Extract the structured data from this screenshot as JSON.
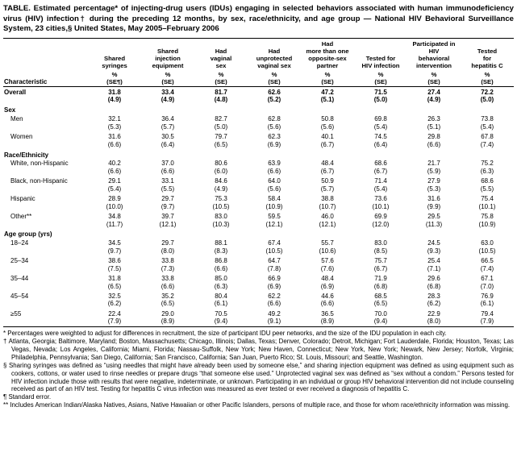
{
  "title": "TABLE. Estimated percentage* of injecting-drug users (IDUs) engaging in selected behaviors associated with human immunodeficiency virus (HIV) infection† during the preceding 12 months, by sex, race/ethnicity, and age group — National HIV Behavioral Surveillance System, 23 cities,§ United States, May 2005–February 2006",
  "table": {
    "characteristic_header": "Characteristic",
    "columns": [
      {
        "label": "Shared\nsyringes",
        "unit": "%",
        "se": "(SE¶)"
      },
      {
        "label": "Shared\ninjection\nequipment",
        "unit": "%",
        "se": "(SE)"
      },
      {
        "label": "Had\nvaginal\nsex",
        "unit": "%",
        "se": "(SE)"
      },
      {
        "label": "Had\nunprotected\nvaginal sex",
        "unit": "%",
        "se": "(SE)"
      },
      {
        "label": "Had\nmore than one\nopposite-sex\npartner",
        "unit": "%",
        "se": "(SE)"
      },
      {
        "label": "Tested for\nHIV infection",
        "unit": "%",
        "se": "(SE)"
      },
      {
        "label": "Participated in\nHIV\nbehavioral\nintervention",
        "unit": "%",
        "se": "(SE)"
      },
      {
        "label": "Tested\nfor\nhepatitis C",
        "unit": "%",
        "se": "(SE)"
      }
    ],
    "rows": [
      {
        "label": "Overall",
        "type": "data",
        "bold": true,
        "indent": false,
        "values": [
          [
            "31.8",
            "(4.9)"
          ],
          [
            "33.4",
            "(4.9)"
          ],
          [
            "81.7",
            "(4.8)"
          ],
          [
            "62.6",
            "(5.2)"
          ],
          [
            "47.2",
            "(5.1)"
          ],
          [
            "71.5",
            "(5.0)"
          ],
          [
            "27.4",
            "(4.9)"
          ],
          [
            "72.2",
            "(5.0)"
          ]
        ]
      },
      {
        "label": "Sex",
        "type": "section"
      },
      {
        "label": "Men",
        "type": "data",
        "bold": false,
        "indent": true,
        "values": [
          [
            "32.1",
            "(5.3)"
          ],
          [
            "36.4",
            "(5.7)"
          ],
          [
            "82.7",
            "(5.0)"
          ],
          [
            "62.8",
            "(5.6)"
          ],
          [
            "50.8",
            "(5.6)"
          ],
          [
            "69.8",
            "(5.4)"
          ],
          [
            "26.3",
            "(5.1)"
          ],
          [
            "73.8",
            "(5.4)"
          ]
        ]
      },
      {
        "label": "Women",
        "type": "data",
        "bold": false,
        "indent": true,
        "values": [
          [
            "31.6",
            "(6.6)"
          ],
          [
            "30.5",
            "(6.4)"
          ],
          [
            "79.7",
            "(6.5)"
          ],
          [
            "62.3",
            "(6.9)"
          ],
          [
            "40.1",
            "(6.7)"
          ],
          [
            "74.5",
            "(6.4)"
          ],
          [
            "29.8",
            "(6.6)"
          ],
          [
            "67.8",
            "(7.4)"
          ]
        ]
      },
      {
        "label": "Race/Ethnicity",
        "type": "section"
      },
      {
        "label": "White, non-Hispanic",
        "type": "data",
        "bold": false,
        "indent": true,
        "values": [
          [
            "40.2",
            "(6.6)"
          ],
          [
            "37.0",
            "(6.6)"
          ],
          [
            "80.6",
            "(6.0)"
          ],
          [
            "63.9",
            "(6.6)"
          ],
          [
            "48.4",
            "(6.7)"
          ],
          [
            "68.6",
            "(6.7)"
          ],
          [
            "21.7",
            "(5.9)"
          ],
          [
            "75.2",
            "(6.3)"
          ]
        ]
      },
      {
        "label": "Black, non-Hispanic",
        "type": "data",
        "bold": false,
        "indent": true,
        "values": [
          [
            "29.1",
            "(5.4)"
          ],
          [
            "33.1",
            "(5.5)"
          ],
          [
            "84.6",
            "(4.9)"
          ],
          [
            "64.0",
            "(5.6)"
          ],
          [
            "50.9",
            "(5.7)"
          ],
          [
            "71.4",
            "(5.4)"
          ],
          [
            "27.9",
            "(5.3)"
          ],
          [
            "68.6",
            "(5.5)"
          ]
        ]
      },
      {
        "label": "Hispanic",
        "type": "data",
        "bold": false,
        "indent": true,
        "values": [
          [
            "28.9",
            "(10.0)"
          ],
          [
            "29.7",
            "(9.7)"
          ],
          [
            "75.3",
            "(10.5)"
          ],
          [
            "58.4",
            "(10.9)"
          ],
          [
            "38.8",
            "(10.7)"
          ],
          [
            "73.6",
            "(10.1)"
          ],
          [
            "31.6",
            "(9.9)"
          ],
          [
            "75.4",
            "(10.1)"
          ]
        ]
      },
      {
        "label": "Other**",
        "type": "data",
        "bold": false,
        "indent": true,
        "values": [
          [
            "34.8",
            "(11.7)"
          ],
          [
            "39.7",
            "(12.1)"
          ],
          [
            "83.0",
            "(10.3)"
          ],
          [
            "59.5",
            "(12.1)"
          ],
          [
            "46.0",
            "(12.1)"
          ],
          [
            "69.9",
            "(12.0)"
          ],
          [
            "29.5",
            "(11.3)"
          ],
          [
            "75.8",
            "(10.9)"
          ]
        ]
      },
      {
        "label": "Age group (yrs)",
        "type": "section"
      },
      {
        "label": "18–24",
        "type": "data",
        "bold": false,
        "indent": true,
        "values": [
          [
            "34.5",
            "(9.7)"
          ],
          [
            "29.7",
            "(8.0)"
          ],
          [
            "88.1",
            "(8.3)"
          ],
          [
            "67.4",
            "(10.5)"
          ],
          [
            "55.7",
            "(10.6)"
          ],
          [
            "83.0",
            "(8.5)"
          ],
          [
            "24.5",
            "(9.3)"
          ],
          [
            "63.0",
            "(10.5)"
          ]
        ]
      },
      {
        "label": "25–34",
        "type": "data",
        "bold": false,
        "indent": true,
        "values": [
          [
            "38.6",
            "(7.5)"
          ],
          [
            "33.8",
            "(7.3)"
          ],
          [
            "86.8",
            "(6.6)"
          ],
          [
            "64.7",
            "(7.8)"
          ],
          [
            "57.6",
            "(7.6)"
          ],
          [
            "75.7",
            "(6.7)"
          ],
          [
            "25.4",
            "(7.1)"
          ],
          [
            "66.5",
            "(7.4)"
          ]
        ]
      },
      {
        "label": "35–44",
        "type": "data",
        "bold": false,
        "indent": true,
        "values": [
          [
            "31.8",
            "(6.5)"
          ],
          [
            "33.8",
            "(6.6)"
          ],
          [
            "85.0",
            "(6.3)"
          ],
          [
            "66.9",
            "(6.9)"
          ],
          [
            "48.4",
            "(6.9)"
          ],
          [
            "71.9",
            "(6.8)"
          ],
          [
            "29.6",
            "(6.8)"
          ],
          [
            "67.1",
            "(7.0)"
          ]
        ]
      },
      {
        "label": "45–54",
        "type": "data",
        "bold": false,
        "indent": true,
        "values": [
          [
            "32.5",
            "(6.2)"
          ],
          [
            "35.2",
            "(6.5)"
          ],
          [
            "80.4",
            "(6.1)"
          ],
          [
            "62.2",
            "(6.6)"
          ],
          [
            "44.6",
            "(6.6)"
          ],
          [
            "68.5",
            "(6.5)"
          ],
          [
            "28.3",
            "(6.2)"
          ],
          [
            "76.9",
            "(6.1)"
          ]
        ]
      },
      {
        "label": "≥55",
        "type": "data",
        "bold": false,
        "indent": true,
        "values": [
          [
            "22.4",
            "(7.9)"
          ],
          [
            "29.0",
            "(8.9)"
          ],
          [
            "70.5",
            "(9.4)"
          ],
          [
            "49.2",
            "(9.1)"
          ],
          [
            "36.5",
            "(8.9)"
          ],
          [
            "70.0",
            "(9.4)"
          ],
          [
            "22.9",
            "(8.0)"
          ],
          [
            "79.4",
            "(7.9)"
          ]
        ]
      }
    ]
  },
  "footnotes": [
    {
      "marker": "*",
      "text": "Percentages were weighted to adjust for differences in recruitment, the size of participant IDU peer networks, and the size of the IDU population in each city."
    },
    {
      "marker": "†",
      "text": "Atlanta, Georgia; Baltimore, Maryland; Boston, Massachusetts; Chicago, Illinois; Dallas, Texas; Denver, Colorado; Detroit, Michigan; Fort Lauderdale, Florida; Houston, Texas; Las Vegas, Nevada; Los Angeles, California; Miami, Florida; Nassau-Suffolk, New York; New Haven, Connecticut; New York, New York; Newark, New Jersey; Norfolk, Virginia; Philadelphia, Pennsylvania; San Diego, California; San Francisco, California; San Juan, Puerto Rico; St. Louis, Missouri; and Seattle, Washington."
    },
    {
      "marker": "§",
      "text": "Sharing syringes was defined as “using needles that might have already been used by someone else,” and sharing injection equipment was defined as using equipment such as cookers, cottons, or water used to rinse needles or prepare drugs “that someone else used.” Unprotected vaginal sex was defined as “sex without a condom.” Persons tested for HIV infection include those with results that were negative, indeterminate, or unknown. Participating in an individual or group HIV behavioral intervention did not include counseling received as part of an HIV test. Testing for hepatitis C virus infection was measured as ever tested or ever received a diagnosis of hepatitis C."
    },
    {
      "marker": "¶",
      "text": "Standard error."
    },
    {
      "marker": "**",
      "text": "Includes American Indian/Alaska Natives, Asians, Native Hawaiian or other Pacific Islanders, persons of multiple race, and those for whom race/ethnicity information was missing."
    }
  ]
}
